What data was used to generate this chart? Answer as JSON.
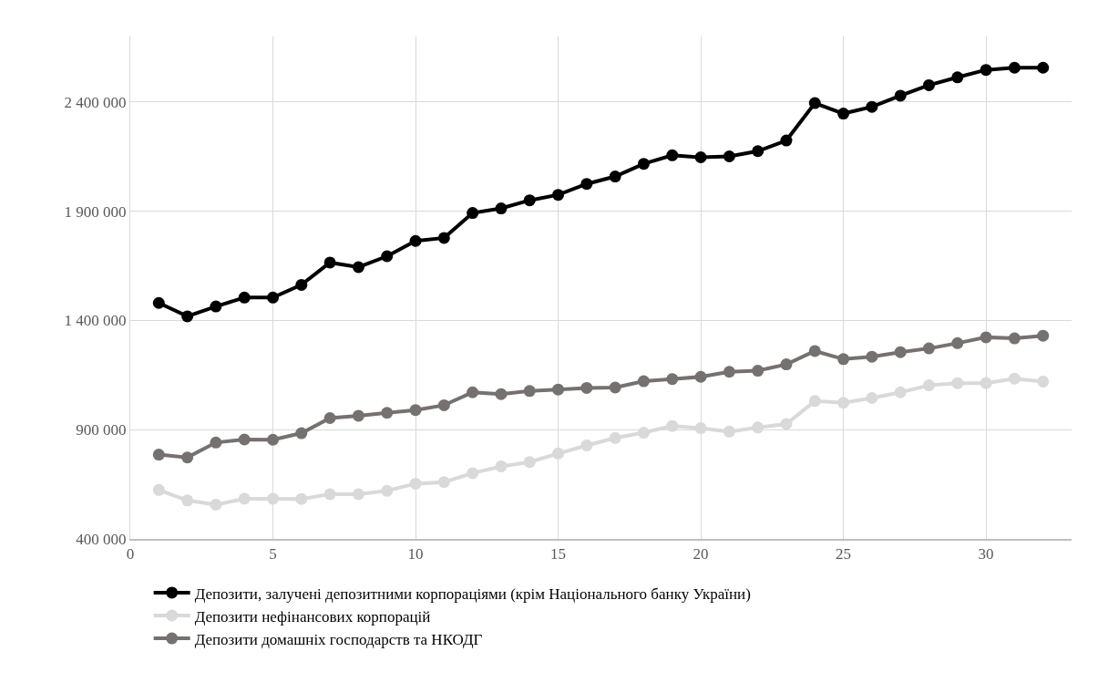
{
  "chart_data": {
    "type": "line",
    "x": [
      1,
      2,
      3,
      4,
      5,
      6,
      7,
      8,
      9,
      10,
      11,
      12,
      13,
      14,
      15,
      16,
      17,
      18,
      19,
      20,
      21,
      22,
      23,
      24,
      25,
      26,
      27,
      28,
      29,
      30,
      31,
      32
    ],
    "series": [
      {
        "name": "Депозити, залучені депозитними корпораціями (крім Національного банку України)",
        "color": "#000000",
        "values": [
          1480000,
          1419000,
          1464000,
          1505000,
          1505000,
          1563000,
          1665000,
          1644000,
          1694000,
          1764000,
          1778000,
          1892000,
          1913000,
          1950000,
          1975000,
          2025000,
          2059000,
          2117000,
          2156000,
          2147000,
          2151000,
          2175000,
          2224000,
          2395000,
          2347000,
          2378000,
          2429000,
          2477000,
          2513000,
          2547000,
          2557000,
          2557000
        ]
      },
      {
        "name": "Депозити нефінансових корпорацій",
        "color": "#d9d9d9",
        "values": [
          624000,
          576000,
          557000,
          584000,
          584000,
          583000,
          605000,
          605000,
          620000,
          653000,
          660000,
          701000,
          732000,
          752000,
          791000,
          828000,
          862000,
          886000,
          917000,
          907000,
          891000,
          910000,
          926000,
          1031000,
          1023000,
          1045000,
          1071000,
          1103000,
          1113000,
          1113000,
          1134000,
          1120000
        ]
      },
      {
        "name": "Депозити домашніх господарств та НКОДГ",
        "color": "#767171",
        "values": [
          786000,
          773000,
          841000,
          855000,
          854000,
          884000,
          953000,
          964000,
          977000,
          990000,
          1012000,
          1071000,
          1063000,
          1077000,
          1084000,
          1091000,
          1093000,
          1122000,
          1132000,
          1142000,
          1165000,
          1170000,
          1199000,
          1260000,
          1223000,
          1234000,
          1255000,
          1272000,
          1296000,
          1323000,
          1318000,
          1330000
        ]
      }
    ],
    "xlim": [
      0,
      33
    ],
    "xticks": [
      0,
      5,
      10,
      15,
      20,
      25,
      30
    ],
    "ylim": [
      400000,
      2700000
    ],
    "yticks": [
      {
        "value": 400000,
        "label": "400 000"
      },
      {
        "value": 900000,
        "label": "900 000"
      },
      {
        "value": 1400000,
        "label": "1 400 000"
      },
      {
        "value": 1900000,
        "label": "1 900 000"
      },
      {
        "value": 2400000,
        "label": "2 400 000"
      }
    ],
    "grid": true,
    "legend": "bottom",
    "marker": "circle",
    "line_style": "solid"
  }
}
